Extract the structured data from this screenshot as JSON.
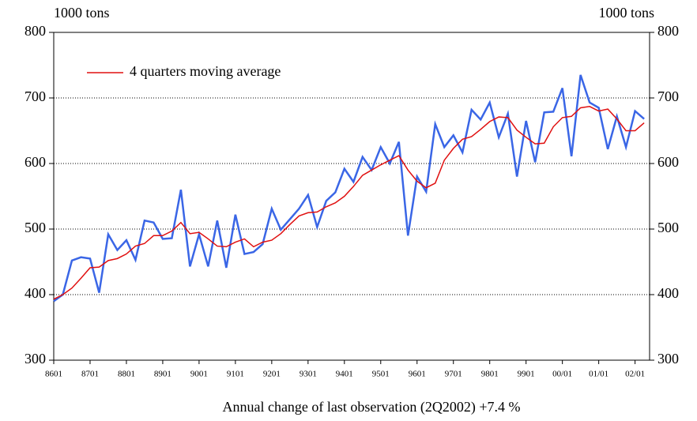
{
  "chart_data": {
    "type": "line",
    "y_label": "1000 tons",
    "y2_label": "1000 tons",
    "footer": "Annual change of last observation (2Q2002) +7.4 %",
    "categories": [
      "8601",
      null,
      null,
      null,
      "8701",
      null,
      null,
      null,
      "8801",
      null,
      null,
      null,
      "8901",
      null,
      null,
      null,
      "9001",
      null,
      null,
      null,
      "9101",
      null,
      null,
      null,
      "9201",
      null,
      null,
      null,
      "9301",
      null,
      null,
      null,
      "9401",
      null,
      null,
      null,
      "9501",
      null,
      null,
      null,
      "9601",
      null,
      null,
      null,
      "9701",
      null,
      null,
      null,
      "9801",
      null,
      null,
      null,
      "9901",
      null,
      null,
      null,
      "00/01",
      null,
      null,
      null,
      "01/01",
      null,
      null,
      null,
      "02/01",
      null
    ],
    "series": [
      {
        "color": "#3a66e6",
        "values": [
          390,
          400,
          452,
          457,
          455,
          403,
          492,
          468,
          483,
          453,
          513,
          510,
          485,
          486,
          560,
          443,
          492,
          443,
          513,
          441,
          522,
          462,
          465,
          477,
          531,
          499,
          515,
          531,
          552,
          503,
          543,
          556,
          592,
          572,
          610,
          590,
          625,
          600,
          633,
          490,
          580,
          557,
          660,
          625,
          643,
          617,
          682,
          667,
          693,
          640,
          676,
          580,
          665,
          602,
          678,
          679,
          715,
          611,
          735,
          693,
          685,
          622,
          672,
          625,
          680,
          668
        ]
      },
      {
        "name": "4 quarters moving average",
        "color": "#e01010",
        "values": [
          393,
          400,
          410,
          425,
          441,
          442,
          452,
          455,
          462,
          474,
          478,
          490,
          490,
          497,
          510,
          493,
          495,
          485,
          474,
          473,
          480,
          485,
          473,
          480,
          483,
          493,
          507,
          520,
          525,
          526,
          534,
          540,
          550,
          565,
          582,
          590,
          598,
          605,
          612,
          590,
          573,
          563,
          570,
          605,
          623,
          637,
          641,
          652,
          664,
          671,
          670,
          651,
          640,
          630,
          631,
          656,
          670,
          672,
          685,
          687,
          680,
          683,
          668,
          650,
          650,
          662
        ]
      }
    ],
    "ylim": [
      300,
      800
    ],
    "yticks": [
      300,
      400,
      500,
      600,
      700,
      800
    ],
    "y2lim": [
      300,
      800
    ],
    "y2ticks": [
      300,
      400,
      500,
      600,
      700,
      800
    ],
    "grid": true
  }
}
